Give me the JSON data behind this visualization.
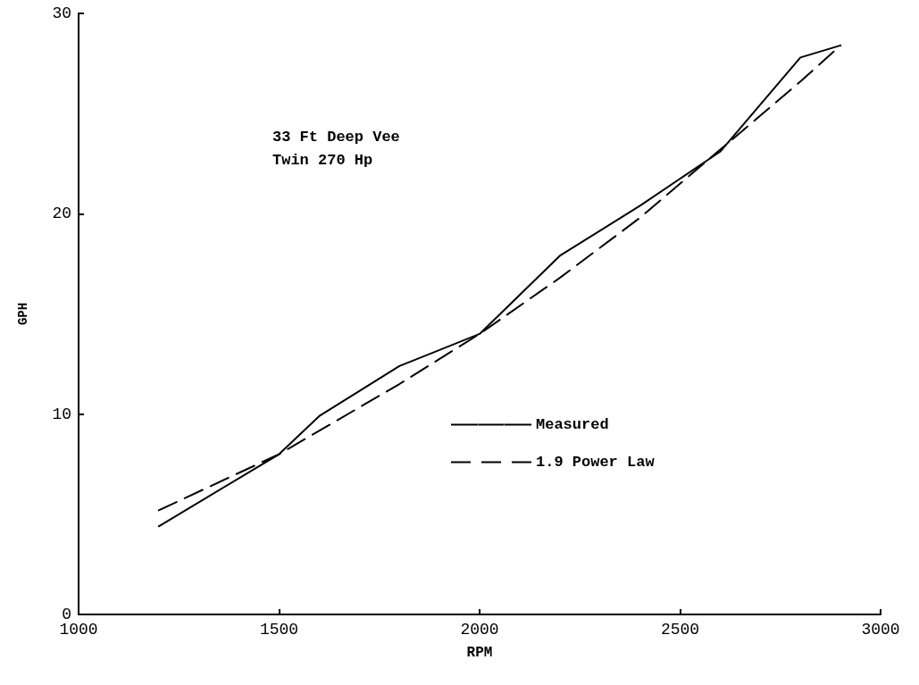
{
  "chart_data": {
    "type": "line",
    "xlabel": "RPM",
    "ylabel": "GPH",
    "annotations": [
      "33 Ft Deep Vee",
      "Twin 270 Hp"
    ],
    "xlim": [
      1000,
      3000
    ],
    "xticks": [
      1000,
      1500,
      2000,
      2500,
      3000
    ],
    "ylim": [
      0,
      30
    ],
    "yticks": [
      0,
      10,
      20,
      30
    ],
    "grid": false,
    "legend": "right",
    "marker": "none",
    "series": [
      {
        "name": "Measured",
        "color": "#000000",
        "line_style": "solid",
        "x": [
          1200,
          1500,
          1600,
          1800,
          2000,
          2200,
          2400,
          2600,
          2800,
          2900
        ],
        "values": [
          4.4,
          8.0,
          9.9,
          12.4,
          14.0,
          17.9,
          20.4,
          23.1,
          27.8,
          28.4
        ]
      },
      {
        "name": "1.9 Power Law",
        "color": "#000000",
        "line_style": "dashed",
        "x": [
          1200,
          1500,
          1800,
          2000,
          2200,
          2400,
          2600,
          2800,
          2900
        ],
        "values": [
          5.2,
          8.0,
          11.5,
          14.0,
          16.8,
          19.8,
          23.2,
          26.6,
          28.4
        ]
      }
    ]
  }
}
